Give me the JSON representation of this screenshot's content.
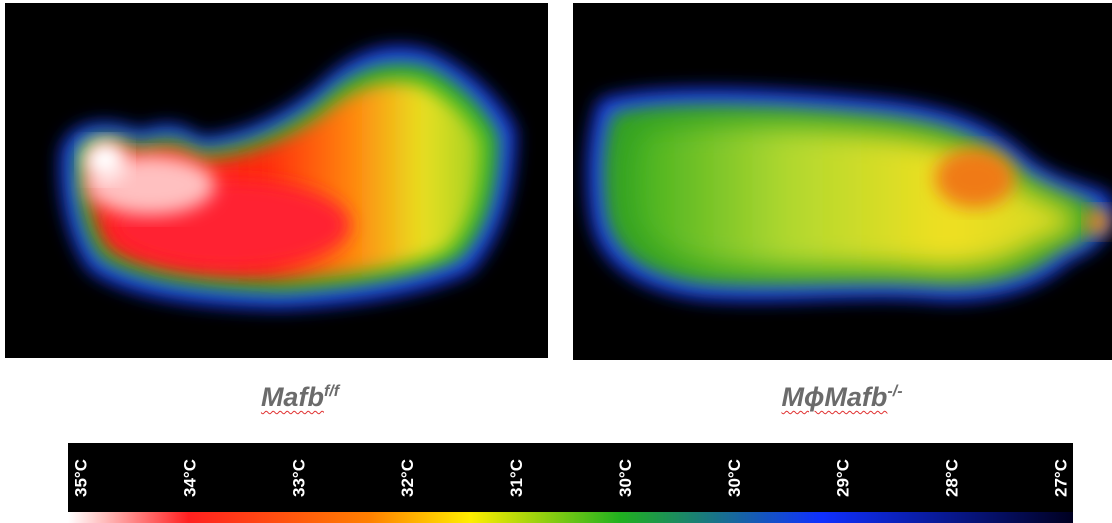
{
  "panels": [
    {
      "label": "Mafb",
      "superscript": "f/f"
    },
    {
      "label": "MϕMafb",
      "superscript": "-/-"
    }
  ],
  "scale": {
    "labels": [
      "35°C",
      "34°C",
      "33°C",
      "32°C",
      "31°C",
      "30°C",
      "30°C",
      "29°C",
      "28°C",
      "27°C"
    ]
  }
}
